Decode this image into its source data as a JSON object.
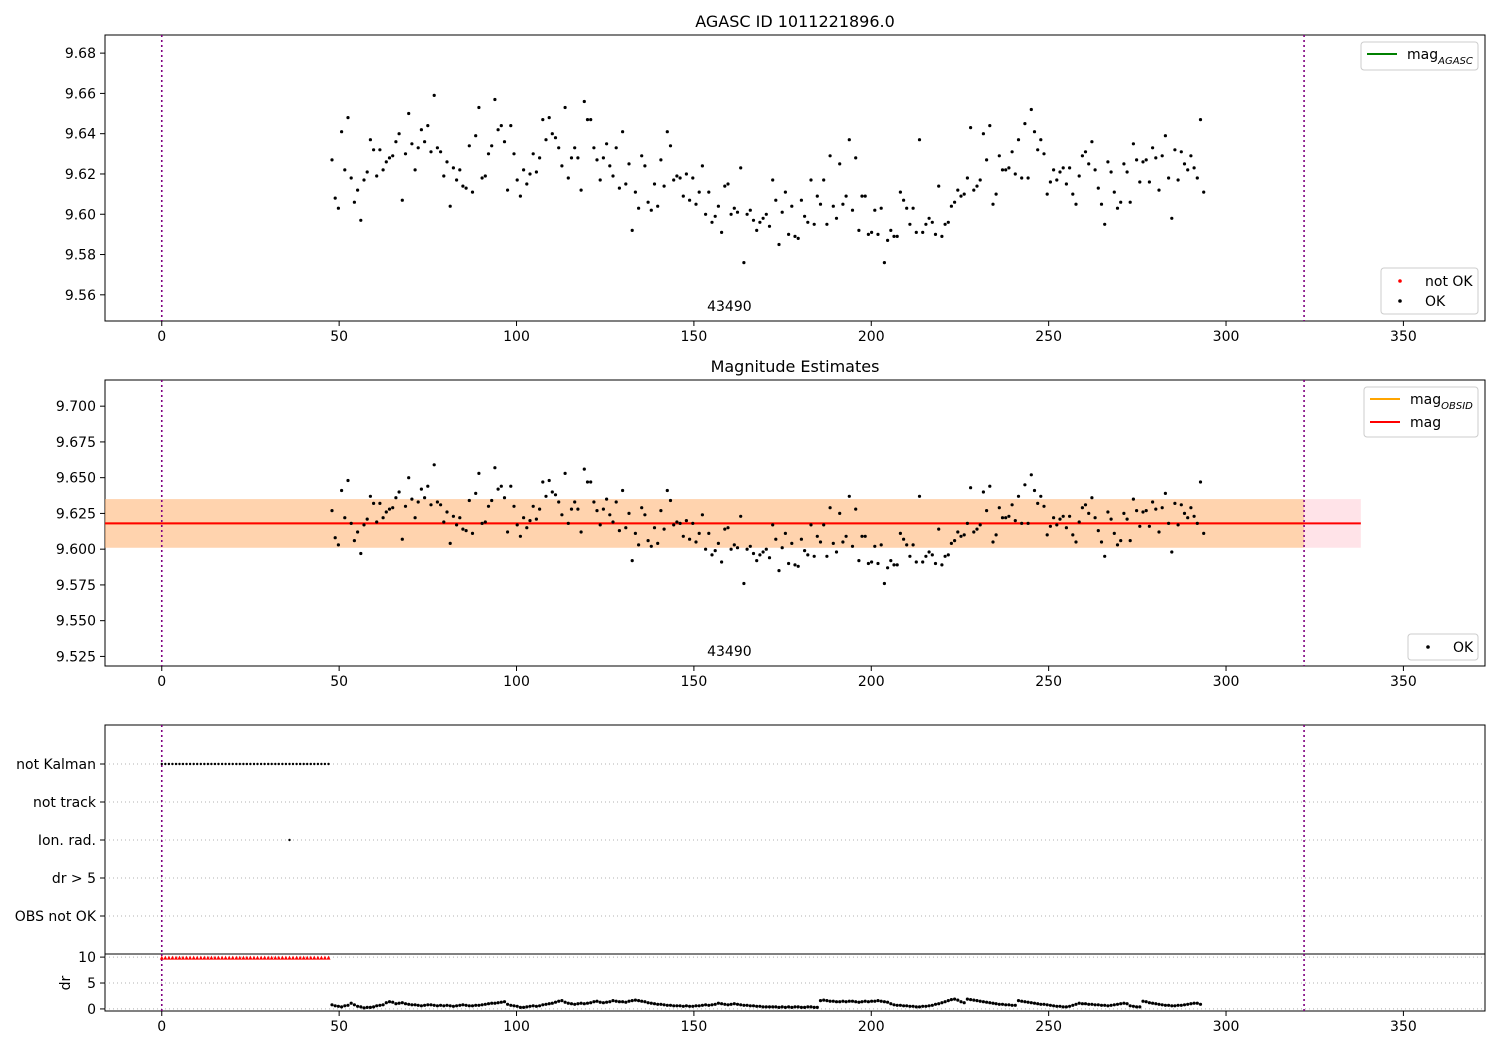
{
  "chart_data": [
    {
      "type": "scatter",
      "title": "AGASC ID 1011221896.0",
      "xlabel": "",
      "ylabel": "",
      "xlim": [
        -16,
        373
      ],
      "ylim": [
        9.547,
        9.689
      ],
      "xticks": [
        0,
        50,
        100,
        150,
        200,
        250,
        300,
        350
      ],
      "yticks": [
        9.56,
        9.58,
        9.6,
        9.62,
        9.64,
        9.66,
        9.68
      ],
      "ytick_labels": [
        "9.56",
        "9.58",
        "9.60",
        "9.62",
        "9.64",
        "9.66",
        "9.68"
      ],
      "vlines": [
        0,
        322
      ],
      "annotation": "43490",
      "annotation_x": 160,
      "legends": [
        {
          "position": "upper-right",
          "entries": [
            {
              "label": "mag",
              "sub": "AGASC",
              "kind": "line",
              "color": "#008000"
            }
          ]
        },
        {
          "position": "lower-right",
          "entries": [
            {
              "label": "not OK",
              "kind": "dot",
              "color": "#ff0000"
            },
            {
              "label": "OK",
              "kind": "dot",
              "color": "#000000"
            }
          ]
        }
      ],
      "series": [
        {
          "name": "OK",
          "color": "#000000",
          "x_start": 48,
          "x_step": 0.9,
          "y": [
            9.627,
            9.608,
            9.603,
            9.641,
            9.622,
            9.648,
            9.618,
            9.606,
            9.612,
            9.597,
            9.617,
            9.621,
            9.637,
            9.632,
            9.619,
            9.632,
            9.622,
            9.626,
            9.628,
            9.629,
            9.636,
            9.64,
            9.607,
            9.63,
            9.65,
            9.635,
            9.622,
            9.633,
            9.642,
            9.636,
            9.644,
            9.631,
            9.659,
            9.633,
            9.631,
            9.619,
            9.626,
            9.604,
            9.623,
            9.617,
            9.622,
            9.614,
            9.613,
            9.634,
            9.611,
            9.639,
            9.653,
            9.618,
            9.619,
            9.63,
            9.634,
            9.657,
            9.642,
            9.644,
            9.636,
            9.612,
            9.644,
            9.63,
            9.617,
            9.609,
            9.622,
            9.615,
            9.62,
            9.63,
            9.621,
            9.628,
            9.647,
            9.637,
            9.648,
            9.64,
            9.638,
            9.633,
            9.624,
            9.653,
            9.618,
            9.628,
            9.633,
            9.628,
            9.612,
            9.656,
            9.647,
            9.647,
            9.633,
            9.627,
            9.617,
            9.628,
            9.635,
            9.624,
            9.619,
            9.633,
            9.613,
            9.641,
            9.615,
            9.625,
            9.592,
            9.611,
            9.603,
            9.629,
            9.624,
            9.606,
            9.602,
            9.615,
            9.604,
            9.627,
            9.614,
            9.641,
            9.634,
            9.617,
            9.619,
            9.618,
            9.609,
            9.62,
            9.607,
            9.618,
            9.605,
            9.611,
            9.624,
            9.6,
            9.611,
            9.596,
            9.599,
            9.604,
            9.591,
            9.614,
            9.615,
            9.6,
            9.603,
            9.601,
            9.623,
            9.576,
            9.6,
            9.602,
            9.597,
            9.592,
            9.596,
            9.598,
            9.6,
            9.594,
            9.617,
            9.607,
            9.585,
            9.601,
            9.611,
            9.59,
            9.604,
            9.589,
            9.588,
            9.607,
            9.599,
            9.596,
            9.617,
            9.595,
            9.609,
            9.605,
            9.617,
            9.595,
            9.629,
            9.604,
            9.598,
            9.625,
            9.605,
            9.609,
            9.637,
            9.602,
            9.628,
            9.592,
            9.609,
            9.609,
            9.59,
            9.591,
            9.602,
            9.59,
            9.603,
            9.576,
            9.587,
            9.592,
            9.589,
            9.589,
            9.611,
            9.607,
            9.603,
            9.595,
            9.603,
            9.591,
            9.637,
            9.591,
            9.595,
            9.598,
            9.596,
            9.59,
            9.614,
            9.589,
            9.595,
            9.596,
            9.604,
            9.606,
            9.612,
            9.609,
            9.61,
            9.618,
            9.643,
            9.612,
            9.614,
            9.617,
            9.64,
            9.627,
            9.644,
            9.605,
            9.61,
            9.629,
            9.622,
            9.622,
            9.623,
            9.631,
            9.62,
            9.637,
            9.618,
            9.645,
            9.618,
            9.652,
            9.641,
            9.632,
            9.637,
            9.63,
            9.61,
            9.616,
            9.622,
            9.617,
            9.621,
            9.623,
            9.615,
            9.623,
            9.61,
            9.605,
            9.619,
            9.629,
            9.631,
            9.625,
            9.636,
            9.622,
            9.613,
            9.605,
            9.595,
            9.626,
            9.621,
            9.611,
            9.603,
            9.606,
            9.625,
            9.621,
            9.606,
            9.635,
            9.627,
            9.616,
            9.626,
            9.627,
            9.616,
            9.633,
            9.628,
            9.612,
            9.629,
            9.639,
            9.618,
            9.598,
            9.632,
            9.617,
            9.631,
            9.625,
            9.622,
            9.629,
            9.623,
            9.618,
            9.647,
            9.611
          ]
        },
        {
          "name": "not OK",
          "color": "#ff0000",
          "x": [],
          "y": []
        }
      ]
    },
    {
      "type": "scatter",
      "title": "Magnitude Estimates",
      "xlabel": "",
      "ylabel": "",
      "xlim": [
        -16,
        373
      ],
      "ylim": [
        9.5183,
        9.7183
      ],
      "xticks": [
        0,
        50,
        100,
        150,
        200,
        250,
        300,
        350
      ],
      "yticks": [
        9.525,
        9.55,
        9.575,
        9.6,
        9.625,
        9.65,
        9.675,
        9.7
      ],
      "ytick_labels": [
        "9.525",
        "9.550",
        "9.575",
        "9.600",
        "9.625",
        "9.650",
        "9.675",
        "9.700"
      ],
      "vlines": [
        0,
        322
      ],
      "annotation": "43490",
      "annotation_x": 160,
      "hlines": [
        {
          "name": "mag",
          "sub": "",
          "y": 9.618,
          "x_range": [
            -16,
            338
          ],
          "color": "#ff0000",
          "band": [
            9.601,
            9.635
          ],
          "band_color": "#ffc0cb"
        },
        {
          "name": "mag",
          "sub": "OBSID",
          "y": 9.618,
          "x_range": [
            -16,
            338
          ],
          "color": "#ffa500",
          "band": [
            9.601,
            9.635
          ],
          "band_color": "#ffa500"
        }
      ],
      "legends": [
        {
          "position": "upper-right",
          "entries": [
            {
              "label": "mag",
              "sub": "OBSID",
              "kind": "line",
              "color": "#ffa500"
            },
            {
              "label": "mag",
              "kind": "line",
              "color": "#ff0000"
            }
          ]
        },
        {
          "position": "lower-right",
          "entries": [
            {
              "label": "OK",
              "kind": "dot",
              "color": "#000000"
            }
          ]
        }
      ],
      "series": [
        {
          "name": "OK",
          "color": "#000000",
          "same_as_panel": 0
        }
      ]
    },
    {
      "type": "scatter",
      "title": "",
      "categories": [
        "not Kalman",
        "not track",
        "Ion. rad.",
        "dr > 5",
        "OBS not OK"
      ],
      "xlim": [
        -16,
        373
      ],
      "xticks": [
        0,
        50,
        100,
        150,
        200,
        250,
        300,
        350
      ],
      "vlines": [
        0,
        322
      ],
      "flags": [
        {
          "category": "not Kalman",
          "x_start": 0,
          "x_end": 47,
          "x_step": 1
        },
        {
          "category": "Ion. rad.",
          "x": [
            36
          ]
        }
      ]
    },
    {
      "type": "scatter",
      "title": "",
      "ylabel": "dr",
      "xlim": [
        -16,
        373
      ],
      "ylim": [
        -0.4,
        10.6
      ],
      "yticks": [
        0,
        5,
        10
      ],
      "ytick_labels": [
        "0",
        "5",
        "10"
      ],
      "xticks": [
        0,
        50,
        100,
        150,
        200,
        250,
        300,
        350
      ],
      "vlines": [
        0,
        322
      ],
      "series": [
        {
          "name": "dr > 5",
          "color": "#ff0000",
          "x_start": 0,
          "x_end": 47,
          "x_step": 1,
          "y": 9.8
        },
        {
          "name": "dr",
          "color": "#000000",
          "x_start": 48,
          "x_step": 0.9,
          "y": [
            0.8,
            0.6,
            0.5,
            0.4,
            0.6,
            0.7,
            1.1,
            0.8,
            0.5,
            0.4,
            0.2,
            0.3,
            0.3,
            0.4,
            0.6,
            0.7,
            0.8,
            1.2,
            1.4,
            1.3,
            1.0,
            1.1,
            1.2,
            1.0,
            0.9,
            0.8,
            0.8,
            0.7,
            0.6,
            0.7,
            0.8,
            0.8,
            0.7,
            0.6,
            0.7,
            0.6,
            0.7,
            0.6,
            0.5,
            0.6,
            0.7,
            0.8,
            0.7,
            0.6,
            0.6,
            0.7,
            0.7,
            0.8,
            0.9,
            1.0,
            1.1,
            1.1,
            1.2,
            1.3,
            1.4,
            0.9,
            0.7,
            0.6,
            0.5,
            0.3,
            0.3,
            0.4,
            0.5,
            0.6,
            0.5,
            0.6,
            0.8,
            0.9,
            1.0,
            1.1,
            1.3,
            1.5,
            1.6,
            1.3,
            1.1,
            1.0,
            0.9,
            1.0,
            1.1,
            1.0,
            1.1,
            1.2,
            1.4,
            1.5,
            1.3,
            1.2,
            1.3,
            1.4,
            1.6,
            1.5,
            1.4,
            1.4,
            1.3,
            1.5,
            1.6,
            1.7,
            1.6,
            1.5,
            1.4,
            1.2,
            1.1,
            1.0,
            0.9,
            0.9,
            0.8,
            0.7,
            0.7,
            0.6,
            0.6,
            0.6,
            0.5,
            0.6,
            0.5,
            0.5,
            0.6,
            0.6,
            0.7,
            0.8,
            0.7,
            0.8,
            0.9,
            1.1,
            1.0,
            0.9,
            0.8,
            0.9,
            1.0,
            0.9,
            0.8,
            0.7,
            0.7,
            0.6,
            0.6,
            0.5,
            0.5,
            0.4,
            0.4,
            0.4,
            0.4,
            0.4,
            0.3,
            0.4,
            0.3,
            0.4,
            0.3,
            0.4,
            0.4,
            0.3,
            0.3,
            0.4,
            0.4,
            0.3,
            0.3,
            1.6,
            1.7,
            1.6,
            1.5,
            1.5,
            1.4,
            1.4,
            1.5,
            1.4,
            1.5,
            1.5,
            1.4,
            1.3,
            1.4,
            1.5,
            1.4,
            1.5,
            1.5,
            1.6,
            1.5,
            1.4,
            1.3,
            1.0,
            0.8,
            0.7,
            0.7,
            0.6,
            0.6,
            0.5,
            0.5,
            0.4,
            0.4,
            0.5,
            0.5,
            0.6,
            0.7,
            0.9,
            1.0,
            1.2,
            1.4,
            1.6,
            1.8,
            1.9,
            1.7,
            1.4,
            1.2,
            1.9,
            1.8,
            1.7,
            1.6,
            1.5,
            1.4,
            1.3,
            1.2,
            1.1,
            1.0,
            0.9,
            0.9,
            0.8,
            0.8,
            0.7,
            0.7,
            1.6,
            1.5,
            1.4,
            1.3,
            1.2,
            1.1,
            1.0,
            0.9,
            0.9,
            0.8,
            0.7,
            0.6,
            0.5,
            0.5,
            0.4,
            0.4,
            0.5,
            0.7,
            0.9,
            1.1,
            1.0,
            1.0,
            0.9,
            0.9,
            0.8,
            0.8,
            0.7,
            0.7,
            0.6,
            0.7,
            0.8,
            0.9,
            1.0,
            1.1,
            1.0,
            0.6,
            0.5,
            0.4,
            0.4,
            1.5,
            1.4,
            1.2,
            1.1,
            1.0,
            0.9,
            0.8,
            0.7,
            0.7,
            0.6,
            0.6,
            0.7,
            0.7,
            0.8,
            0.9,
            1.0,
            1.1,
            1.1,
            0.9
          ]
        }
      ]
    }
  ]
}
